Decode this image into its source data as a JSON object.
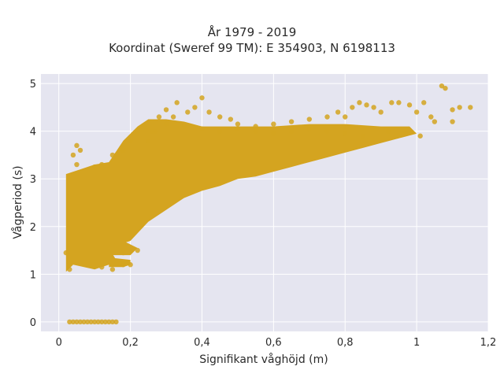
{
  "chart_data": {
    "type": "scatter",
    "title_line1": "År 1979 - 2019",
    "title_line2": "Koordinat (Sweref 99 TM): E 354903, N 6198113",
    "xlabel": "Signifikant våghöjd (m)",
    "ylabel": "Vågperiod (s)",
    "xlim": [
      -0.05,
      1.2
    ],
    "ylim": [
      -0.2,
      5.2
    ],
    "x_ticks": [
      0,
      0.2,
      0.4,
      0.6,
      0.8,
      1,
      1.2
    ],
    "x_tick_labels": [
      "0",
      "0,2",
      "0,4",
      "0,6",
      "0,8",
      "1",
      "1,2"
    ],
    "y_ticks": [
      0,
      1,
      2,
      3,
      4,
      5
    ],
    "y_tick_labels": [
      "0",
      "1",
      "2",
      "3",
      "4",
      "5"
    ],
    "grid": true,
    "colors": {
      "marker": "#d4a420",
      "plot_bg": "#e5e5f0",
      "grid": "#ffffff"
    },
    "series": [
      {
        "points": [
          [
            0.03,
            0
          ],
          [
            0.04,
            0
          ],
          [
            0.05,
            0
          ],
          [
            0.06,
            0
          ],
          [
            0.07,
            0
          ],
          [
            0.08,
            0
          ],
          [
            0.09,
            0
          ],
          [
            0.1,
            0
          ],
          [
            0.11,
            0
          ],
          [
            0.12,
            0
          ],
          [
            0.13,
            0
          ],
          [
            0.14,
            0
          ],
          [
            0.15,
            0
          ],
          [
            0.16,
            0
          ],
          [
            0.02,
            1.45
          ],
          [
            0.03,
            1.1
          ],
          [
            0.04,
            3.5
          ],
          [
            0.05,
            3.7
          ],
          [
            0.06,
            3.6
          ],
          [
            0.05,
            3.3
          ],
          [
            0.12,
            1.15
          ],
          [
            0.15,
            1.1
          ],
          [
            0.18,
            1.2
          ],
          [
            0.2,
            1.2
          ],
          [
            0.18,
            1.45
          ],
          [
            0.22,
            1.5
          ],
          [
            0.25,
            3.8
          ],
          [
            0.27,
            4.0
          ],
          [
            0.28,
            4.3
          ],
          [
            0.3,
            4.45
          ],
          [
            0.32,
            4.3
          ],
          [
            0.33,
            4.6
          ],
          [
            0.36,
            4.4
          ],
          [
            0.38,
            4.5
          ],
          [
            0.4,
            4.7
          ],
          [
            0.42,
            4.4
          ],
          [
            0.45,
            4.3
          ],
          [
            0.48,
            4.25
          ],
          [
            0.5,
            4.15
          ],
          [
            0.55,
            4.1
          ],
          [
            0.6,
            4.15
          ],
          [
            0.65,
            4.2
          ],
          [
            0.7,
            4.25
          ],
          [
            0.75,
            4.3
          ],
          [
            0.78,
            4.4
          ],
          [
            0.8,
            4.3
          ],
          [
            0.82,
            4.5
          ],
          [
            0.84,
            4.6
          ],
          [
            0.86,
            4.55
          ],
          [
            0.88,
            4.5
          ],
          [
            0.9,
            4.4
          ],
          [
            0.93,
            4.6
          ],
          [
            0.95,
            4.6
          ],
          [
            0.98,
            4.55
          ],
          [
            1.0,
            4.4
          ],
          [
            1.02,
            4.6
          ],
          [
            1.05,
            4.2
          ],
          [
            1.07,
            4.95
          ],
          [
            1.08,
            4.9
          ],
          [
            1.1,
            4.45
          ],
          [
            1.12,
            4.5
          ],
          [
            1.15,
            4.5
          ],
          [
            1.1,
            4.2
          ],
          [
            1.04,
            4.3
          ],
          [
            0.92,
            4.0
          ],
          [
            0.97,
            3.95
          ],
          [
            1.01,
            3.9
          ],
          [
            0.1,
            3.25
          ],
          [
            0.12,
            3.3
          ],
          [
            0.15,
            3.5
          ],
          [
            0.18,
            3.6
          ],
          [
            0.2,
            3.8
          ],
          [
            0.22,
            3.95
          ],
          [
            0.24,
            4.1
          ],
          [
            0.26,
            4.0
          ],
          [
            0.3,
            4.15
          ],
          [
            0.35,
            4.1
          ],
          [
            0.4,
            4.05
          ],
          [
            0.45,
            4.0
          ],
          [
            0.5,
            4.05
          ],
          [
            0.55,
            4.0
          ],
          [
            0.6,
            3.95
          ],
          [
            0.65,
            4.0
          ],
          [
            0.7,
            4.05
          ],
          [
            0.75,
            4.0
          ],
          [
            0.8,
            3.95
          ],
          [
            0.85,
            3.9
          ]
        ]
      }
    ]
  }
}
